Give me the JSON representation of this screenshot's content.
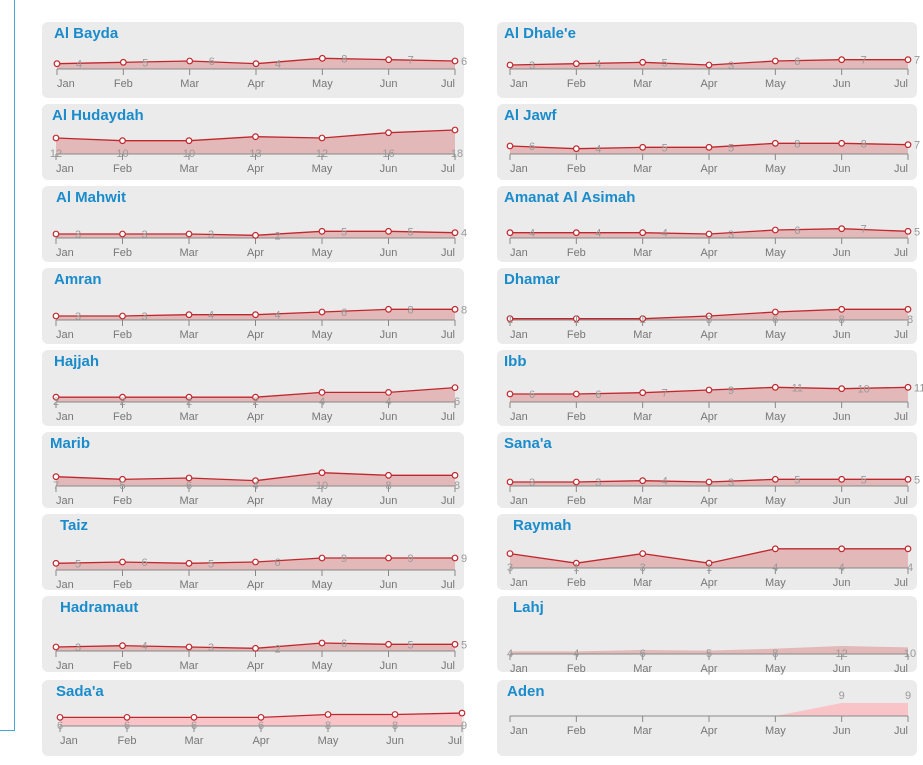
{
  "months": [
    "Jan",
    "Feb",
    "Mar",
    "Apr",
    "May",
    "Jun",
    "Jul"
  ],
  "colors": {
    "line": "#c0272d",
    "fill": "#e2b8b8",
    "fill_alt": "#f9c4c8",
    "title": "#1a8ccc",
    "axis": "#888888",
    "label": "#999999"
  },
  "chart_data": [
    {
      "type": "area",
      "title": "Al Bayda",
      "x": [
        "Jan",
        "Feb",
        "Mar",
        "Apr",
        "May",
        "Jun",
        "Jul"
      ],
      "values": [
        4,
        5,
        6,
        4,
        8,
        7,
        6
      ],
      "ylim": [
        0,
        18
      ]
    },
    {
      "type": "area",
      "title": "Al Dhale'e",
      "x": [
        "Jan",
        "Feb",
        "Mar",
        "Apr",
        "May",
        "Jun",
        "Jul"
      ],
      "values": [
        3,
        4,
        5,
        3,
        6,
        7,
        7
      ],
      "ylim": [
        0,
        18
      ]
    },
    {
      "type": "area",
      "title": "Al Hudaydah",
      "x": [
        "Jan",
        "Feb",
        "Mar",
        "Apr",
        "May",
        "Jun",
        "Jul"
      ],
      "values": [
        12,
        10,
        10,
        13,
        12,
        16,
        18
      ],
      "ylim": [
        0,
        18
      ]
    },
    {
      "type": "area",
      "title": "Al Jawf",
      "x": [
        "Jan",
        "Feb",
        "Mar",
        "Apr",
        "May",
        "Jun",
        "Jul"
      ],
      "values": [
        6,
        4,
        5,
        5,
        8,
        8,
        7
      ],
      "ylim": [
        0,
        18
      ]
    },
    {
      "type": "area",
      "title": "Al Mahwit",
      "x": [
        "Jan",
        "Feb",
        "Mar",
        "Apr",
        "May",
        "Jun",
        "Jul"
      ],
      "values": [
        3,
        3,
        3,
        2,
        5,
        5,
        4
      ],
      "ylim": [
        0,
        18
      ]
    },
    {
      "type": "area",
      "title": "Amanat Al Asimah",
      "x": [
        "Jan",
        "Feb",
        "Mar",
        "Apr",
        "May",
        "Jun",
        "Jul"
      ],
      "values": [
        4,
        4,
        4,
        3,
        6,
        7,
        5
      ],
      "ylim": [
        0,
        18
      ]
    },
    {
      "type": "area",
      "title": "Amran",
      "x": [
        "Jan",
        "Feb",
        "Mar",
        "Apr",
        "May",
        "Jun",
        "Jul"
      ],
      "values": [
        3,
        3,
        4,
        4,
        6,
        8,
        8
      ],
      "ylim": [
        0,
        18
      ]
    },
    {
      "type": "area",
      "title": "Dhamar",
      "x": [
        "Jan",
        "Feb",
        "Mar",
        "Apr",
        "May",
        "Jun",
        "Jul"
      ],
      "values": [
        1,
        1,
        1,
        3,
        6,
        8,
        8
      ],
      "ylim": [
        0,
        18
      ]
    },
    {
      "type": "area",
      "title": "Hajjah",
      "x": [
        "Jan",
        "Feb",
        "Mar",
        "Apr",
        "May",
        "Jun",
        "Jul"
      ],
      "values": [
        2,
        2,
        2,
        2,
        4,
        4,
        6
      ],
      "ylim": [
        0,
        10
      ]
    },
    {
      "type": "area",
      "title": "Ibb",
      "x": [
        "Jan",
        "Feb",
        "Mar",
        "Apr",
        "May",
        "Jun",
        "Jul"
      ],
      "values": [
        6,
        6,
        7,
        9,
        11,
        10,
        11
      ],
      "ylim": [
        0,
        18
      ]
    },
    {
      "type": "area",
      "title": "Marib",
      "x": [
        "Jan",
        "Feb",
        "Mar",
        "Apr",
        "May",
        "Jun",
        "Jul"
      ],
      "values": [
        7,
        5,
        6,
        4,
        10,
        8,
        8
      ],
      "ylim": [
        0,
        18
      ]
    },
    {
      "type": "area",
      "title": "Sana'a",
      "x": [
        "Jan",
        "Feb",
        "Mar",
        "Apr",
        "May",
        "Jun",
        "Jul"
      ],
      "values": [
        3,
        3,
        4,
        3,
        5,
        5,
        5
      ],
      "ylim": [
        0,
        18
      ]
    },
    {
      "type": "area",
      "title": "Taiz",
      "x": [
        "Jan",
        "Feb",
        "Mar",
        "Apr",
        "May",
        "Jun",
        "Jul"
      ],
      "values": [
        5,
        6,
        5,
        6,
        9,
        9,
        9
      ],
      "ylim": [
        0,
        18
      ]
    },
    {
      "type": "area",
      "title": "Raymah",
      "x": [
        "Jan",
        "Feb",
        "Mar",
        "Apr",
        "May",
        "Jun",
        "Jul"
      ],
      "values": [
        3,
        1,
        3,
        1,
        4,
        4,
        4
      ],
      "ylim": [
        0,
        5
      ]
    },
    {
      "type": "area",
      "title": "Hadramaut",
      "x": [
        "Jan",
        "Feb",
        "Mar",
        "Apr",
        "May",
        "Jun",
        "Jul"
      ],
      "values": [
        3,
        4,
        3,
        2,
        6,
        5,
        5
      ],
      "ylim": [
        0,
        18
      ]
    },
    {
      "type": "area",
      "title": "Lahj",
      "x": [
        "Jan",
        "Feb",
        "Mar",
        "Apr",
        "May",
        "Jun",
        "Jul"
      ],
      "values": [
        4,
        4,
        6,
        5,
        8,
        12,
        10
      ],
      "ylim": [
        0,
        45
      ]
    },
    {
      "type": "area",
      "title": "Sada'a",
      "x": [
        "Jan",
        "Feb",
        "Mar",
        "Apr",
        "May",
        "Jun",
        "Jul"
      ],
      "values": [
        6,
        6,
        6,
        6,
        8,
        8,
        9
      ],
      "ylim": [
        0,
        25
      ]
    },
    {
      "type": "area",
      "title": "Aden",
      "x": [
        "Jan",
        "Feb",
        "Mar",
        "Apr",
        "May",
        "Jun",
        "Jul"
      ],
      "values": [
        null,
        null,
        null,
        null,
        null,
        9,
        9
      ],
      "ylim": [
        0,
        25
      ]
    }
  ]
}
